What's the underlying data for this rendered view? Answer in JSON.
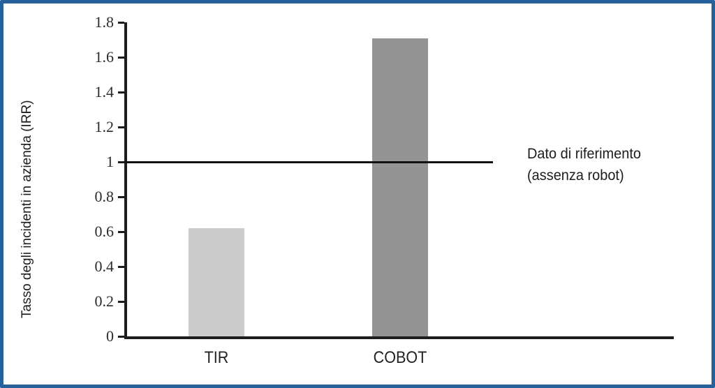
{
  "chart_data": {
    "type": "bar",
    "title": "",
    "categories": [
      "TIR",
      "COBOT"
    ],
    "values": [
      0.62,
      1.71
    ],
    "bar_colors": [
      "#cccccc",
      "#949494"
    ],
    "xlabel": "",
    "ylabel": "Tasso degli incidenti in azienda (IRR)",
    "ylim": [
      0,
      1.8
    ],
    "yticks": [
      {
        "value": 0,
        "label": "0"
      },
      {
        "value": 0.2,
        "label": "0.2"
      },
      {
        "value": 0.4,
        "label": "0.4"
      },
      {
        "value": 0.6,
        "label": "0.6"
      },
      {
        "value": 0.8,
        "label": "0.8"
      },
      {
        "value": 1,
        "label": "1"
      },
      {
        "value": 1.2,
        "label": "1.2"
      },
      {
        "value": 1.4,
        "label": "1.4"
      },
      {
        "value": 1.6,
        "label": "1.6"
      },
      {
        "value": 1.8,
        "label": "1.8"
      }
    ],
    "grid": false,
    "legend_position": "none",
    "reference_line": {
      "value": 1,
      "label_line1": "Dato di riferimento",
      "label_line2": "(assenza robot)"
    }
  },
  "style": {
    "frame_border_color": "#27619c",
    "axis_color": "#1d1d1d"
  }
}
